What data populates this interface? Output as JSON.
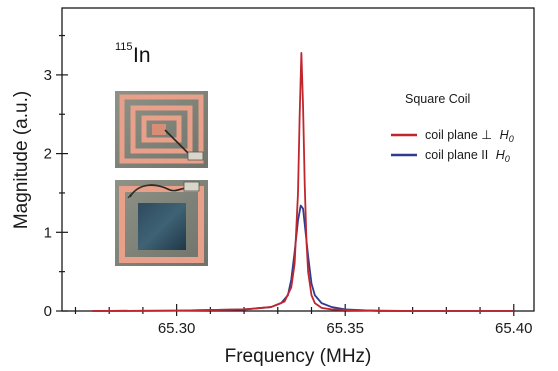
{
  "chart_data": {
    "type": "line",
    "xlabel": "Frequency (MHz)",
    "ylabel": "Magnitude (a.u.)",
    "xlim": [
      65.266,
      65.406
    ],
    "ylim": [
      0,
      3.85
    ],
    "xticks": [
      65.3,
      65.35,
      65.4
    ],
    "xtick_labels": [
      "65.30",
      "65.35",
      "65.40"
    ],
    "yticks": [
      0,
      1,
      2,
      3
    ],
    "ytick_labels": [
      "0",
      "1",
      "2",
      "3"
    ],
    "grid": false,
    "annotation": {
      "mass": "115",
      "element": "In"
    },
    "legend": {
      "title": "Square Coil",
      "placement": "right",
      "entries": [
        {
          "text": "coil plane ⊥",
          "field": "H",
          "sub": "0"
        },
        {
          "text": "coil plane II",
          "field": "H",
          "sub": "0"
        }
      ]
    },
    "series": [
      {
        "name": "coil plane ⊥ H0",
        "color": "#c0262c",
        "x": [
          65.275,
          65.3,
          65.32,
          65.328,
          65.332,
          65.334,
          65.335,
          65.336,
          65.3365,
          65.337,
          65.3375,
          65.338,
          65.3385,
          65.339,
          65.34,
          65.341,
          65.343,
          65.346,
          65.352,
          65.37,
          65.4
        ],
        "y": [
          0.0,
          0.005,
          0.02,
          0.05,
          0.12,
          0.3,
          0.6,
          1.5,
          2.5,
          3.28,
          2.6,
          1.6,
          0.9,
          0.5,
          0.2,
          0.1,
          0.04,
          0.02,
          0.01,
          0.0,
          0.0
        ]
      },
      {
        "name": "coil plane II H0",
        "color": "#2f3c92",
        "x": [
          65.275,
          65.3,
          65.32,
          65.328,
          65.331,
          65.333,
          65.334,
          65.335,
          65.336,
          65.3368,
          65.3375,
          65.338,
          65.339,
          65.34,
          65.341,
          65.343,
          65.346,
          65.35,
          65.36,
          65.4
        ],
        "y": [
          0.0,
          0.005,
          0.02,
          0.05,
          0.1,
          0.2,
          0.4,
          0.75,
          1.15,
          1.34,
          1.3,
          1.1,
          0.7,
          0.35,
          0.2,
          0.1,
          0.05,
          0.02,
          0.0,
          0.0
        ]
      }
    ]
  }
}
